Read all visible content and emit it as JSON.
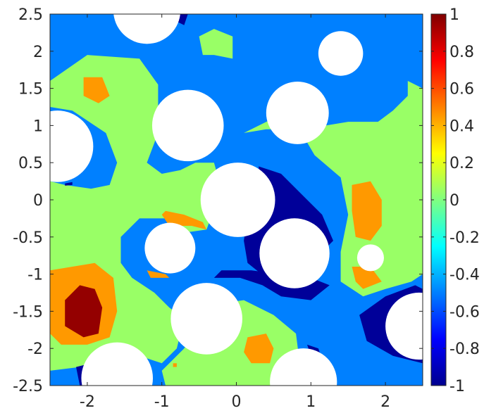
{
  "chart_data": {
    "type": "heatmap",
    "title": "",
    "xlabel": "",
    "ylabel": "",
    "xlim": [
      -2.5,
      2.5
    ],
    "ylim": [
      -2.5,
      2.5
    ],
    "x_ticks": [
      "-2",
      "-1",
      "0",
      "1",
      "2"
    ],
    "y_ticks": [
      "2.5",
      "2",
      "1.5",
      "1",
      "0.5",
      "0",
      "-0.5",
      "-1",
      "-1.5",
      "-2",
      "-2.5"
    ],
    "colorbar": {
      "range": [
        -1,
        1
      ],
      "colormap": "jet",
      "ticks": [
        "1",
        "0.8",
        "0.6",
        "0.4",
        "0.2",
        "0",
        "-0.2",
        "-0.4",
        "-0.6",
        "-0.8",
        "-1"
      ]
    },
    "background_value": -0.5,
    "regions": [
      {
        "value": 0.05,
        "points": [
          [
            -2.5,
            1.6
          ],
          [
            -2.0,
            1.95
          ],
          [
            -1.3,
            1.9
          ],
          [
            -1.05,
            1.55
          ],
          [
            -1.05,
            0.9
          ],
          [
            -1.2,
            0.5
          ],
          [
            -1.0,
            0.35
          ],
          [
            -0.75,
            0.4
          ],
          [
            -0.55,
            0.5
          ],
          [
            -0.3,
            0.5
          ],
          [
            -0.2,
            0.15
          ],
          [
            -0.4,
            -0.4
          ],
          [
            -0.75,
            -0.45
          ],
          [
            -0.95,
            -0.25
          ],
          [
            -1.3,
            -0.25
          ],
          [
            -1.55,
            -0.5
          ],
          [
            -1.55,
            -0.85
          ],
          [
            -1.4,
            -1.05
          ],
          [
            -1.1,
            -1.25
          ],
          [
            -0.9,
            -1.45
          ],
          [
            -0.7,
            -1.6
          ],
          [
            -0.8,
            -2.0
          ],
          [
            -1.0,
            -2.2
          ],
          [
            -1.3,
            -2.1
          ],
          [
            -1.7,
            -2.3
          ],
          [
            -2.1,
            -2.25
          ],
          [
            -2.5,
            -2.3
          ]
        ]
      },
      {
        "value": 0.05,
        "points": [
          [
            -0.25,
            -1.4
          ],
          [
            0.1,
            -1.35
          ],
          [
            0.5,
            -1.55
          ],
          [
            0.8,
            -1.8
          ],
          [
            0.85,
            -2.2
          ],
          [
            0.65,
            -2.5
          ],
          [
            -0.95,
            -2.5
          ],
          [
            -1.0,
            -2.3
          ],
          [
            -0.7,
            -2.0
          ],
          [
            -0.5,
            -1.7
          ]
        ]
      },
      {
        "value": 0.05,
        "points": [
          [
            0.1,
            0.9
          ],
          [
            0.7,
            1.2
          ],
          [
            1.05,
            0.6
          ],
          [
            1.4,
            0.3
          ],
          [
            1.5,
            -0.2
          ],
          [
            1.4,
            -0.7
          ],
          [
            1.4,
            -1.1
          ],
          [
            1.7,
            -1.3
          ],
          [
            2.0,
            -1.2
          ],
          [
            2.35,
            -1.1
          ],
          [
            2.5,
            -1.0
          ],
          [
            2.5,
            1.5
          ],
          [
            2.3,
            1.6
          ],
          [
            2.3,
            1.4
          ],
          [
            2.1,
            1.2
          ],
          [
            1.9,
            1.05
          ],
          [
            1.5,
            1.05
          ],
          [
            1.2,
            1.0
          ],
          [
            0.9,
            0.95
          ],
          [
            0.4,
            0.95
          ]
        ]
      },
      {
        "value": 0.05,
        "points": [
          [
            -0.5,
            2.2
          ],
          [
            -0.3,
            2.3
          ],
          [
            -0.05,
            2.2
          ],
          [
            -0.05,
            1.9
          ],
          [
            -0.3,
            1.95
          ],
          [
            -0.45,
            1.95
          ]
        ]
      },
      {
        "value": -0.5,
        "points": [
          [
            -2.5,
            1.25
          ],
          [
            -2.2,
            1.2
          ],
          [
            -1.75,
            0.9
          ],
          [
            -1.6,
            0.5
          ],
          [
            -1.7,
            0.2
          ],
          [
            -1.95,
            0.15
          ],
          [
            -2.3,
            0.2
          ],
          [
            -2.5,
            0.25
          ]
        ]
      },
      {
        "value": -0.95,
        "points": [
          [
            0.3,
            0.45
          ],
          [
            0.6,
            0.35
          ],
          [
            0.95,
            0.0
          ],
          [
            1.15,
            -0.2
          ],
          [
            1.3,
            -0.55
          ],
          [
            1.05,
            -0.8
          ],
          [
            0.7,
            -1.0
          ],
          [
            0.4,
            -1.05
          ],
          [
            0.15,
            -0.85
          ],
          [
            0.1,
            -0.55
          ],
          [
            0.15,
            -0.2
          ],
          [
            0.3,
            0.1
          ]
        ]
      },
      {
        "value": -0.95,
        "points": [
          [
            -0.3,
            -1.05
          ],
          [
            0.05,
            -1.05
          ],
          [
            0.35,
            -1.15
          ],
          [
            0.6,
            -1.3
          ],
          [
            1.0,
            -1.35
          ],
          [
            1.25,
            -1.15
          ],
          [
            1.0,
            -1.05
          ],
          [
            0.6,
            -1.0
          ],
          [
            0.2,
            -0.95
          ],
          [
            -0.2,
            -0.95
          ]
        ]
      },
      {
        "value": -0.95,
        "points": [
          [
            1.65,
            -1.55
          ],
          [
            2.0,
            -1.3
          ],
          [
            2.4,
            -1.15
          ],
          [
            2.5,
            -1.2
          ],
          [
            2.5,
            -2.2
          ],
          [
            2.1,
            -2.1
          ],
          [
            1.75,
            -1.9
          ]
        ]
      },
      {
        "value": -0.95,
        "points": [
          [
            0.95,
            -1.95
          ],
          [
            1.1,
            -2.0
          ],
          [
            1.15,
            -2.15
          ],
          [
            1.0,
            -2.1
          ]
        ]
      },
      {
        "value": -0.95,
        "points": [
          [
            -2.15,
            -2.25
          ],
          [
            -1.95,
            -2.2
          ],
          [
            -1.85,
            -2.45
          ],
          [
            -2.1,
            -2.5
          ]
        ]
      },
      {
        "value": -0.95,
        "points": [
          [
            -0.8,
            2.5
          ],
          [
            -0.65,
            2.5
          ],
          [
            -0.7,
            2.35
          ],
          [
            -0.8,
            2.4
          ]
        ]
      },
      {
        "value": -0.95,
        "points": [
          [
            -2.3,
            0.22
          ],
          [
            -2.2,
            0.24
          ],
          [
            -2.2,
            0.2
          ],
          [
            -2.3,
            0.19
          ]
        ]
      },
      {
        "value": 0.45,
        "points": [
          [
            -2.5,
            -0.95
          ],
          [
            -2.2,
            -0.9
          ],
          [
            -1.9,
            -0.85
          ],
          [
            -1.65,
            -1.05
          ],
          [
            -1.6,
            -1.5
          ],
          [
            -1.7,
            -1.85
          ],
          [
            -2.0,
            -1.95
          ],
          [
            -2.35,
            -1.95
          ],
          [
            -2.5,
            -1.8
          ]
        ]
      },
      {
        "value": 0.96,
        "points": [
          [
            -2.3,
            -1.35
          ],
          [
            -2.1,
            -1.15
          ],
          [
            -1.9,
            -1.2
          ],
          [
            -1.8,
            -1.45
          ],
          [
            -1.85,
            -1.8
          ],
          [
            -2.05,
            -1.85
          ],
          [
            -2.3,
            -1.7
          ]
        ]
      },
      {
        "value": 0.45,
        "points": [
          [
            -2.05,
            1.65
          ],
          [
            -1.8,
            1.65
          ],
          [
            -1.7,
            1.4
          ],
          [
            -1.85,
            1.3
          ],
          [
            -2.05,
            1.4
          ]
        ]
      },
      {
        "value": 0.45,
        "points": [
          [
            -0.95,
            -0.15
          ],
          [
            -0.7,
            -0.2
          ],
          [
            -0.45,
            -0.3
          ],
          [
            -0.4,
            -0.4
          ],
          [
            -0.6,
            -0.35
          ],
          [
            -0.9,
            -0.35
          ],
          [
            -1.0,
            -0.2
          ]
        ]
      },
      {
        "value": 0.45,
        "points": [
          [
            -1.2,
            -0.95
          ],
          [
            -0.95,
            -1.0
          ],
          [
            -0.9,
            -1.05
          ],
          [
            -1.15,
            -1.05
          ]
        ]
      },
      {
        "value": 0.45,
        "points": [
          [
            1.55,
            0.2
          ],
          [
            1.8,
            0.25
          ],
          [
            1.95,
            0.0
          ],
          [
            1.95,
            -0.35
          ],
          [
            1.8,
            -0.55
          ],
          [
            1.6,
            -0.5
          ],
          [
            1.55,
            -0.15
          ]
        ]
      },
      {
        "value": 0.45,
        "points": [
          [
            1.55,
            -0.9
          ],
          [
            1.8,
            -0.9
          ],
          [
            1.95,
            -1.1
          ],
          [
            1.7,
            -1.2
          ],
          [
            1.6,
            -1.1
          ]
        ]
      },
      {
        "value": 0.45,
        "points": [
          [
            0.15,
            -1.85
          ],
          [
            0.4,
            -1.8
          ],
          [
            0.5,
            -2.0
          ],
          [
            0.45,
            -2.2
          ],
          [
            0.2,
            -2.2
          ],
          [
            0.1,
            -2.05
          ]
        ]
      },
      {
        "value": 0.45,
        "points": [
          [
            -0.85,
            -2.2
          ],
          [
            -0.8,
            -2.2
          ],
          [
            -0.8,
            -2.25
          ],
          [
            -0.85,
            -2.25
          ]
        ]
      }
    ],
    "holes": [
      {
        "cx": -1.2,
        "cy": 2.55,
        "r": 0.45
      },
      {
        "cx": 1.4,
        "cy": 1.97,
        "r": 0.3
      },
      {
        "cx": -0.65,
        "cy": 1.0,
        "r": 0.48
      },
      {
        "cx": 0.82,
        "cy": 1.17,
        "r": 0.42
      },
      {
        "cx": -2.4,
        "cy": 0.72,
        "r": 0.48
      },
      {
        "cx": 0.02,
        "cy": 0.0,
        "r": 0.5
      },
      {
        "cx": -0.89,
        "cy": -0.65,
        "r": 0.34
      },
      {
        "cx": 0.78,
        "cy": -0.72,
        "r": 0.47
      },
      {
        "cx": 1.8,
        "cy": -0.78,
        "r": 0.18
      },
      {
        "cx": -0.4,
        "cy": -1.6,
        "r": 0.48
      },
      {
        "cx": 2.45,
        "cy": -1.7,
        "r": 0.45
      },
      {
        "cx": -1.6,
        "cy": -2.4,
        "r": 0.48
      },
      {
        "cx": 0.9,
        "cy": -2.45,
        "r": 0.45
      }
    ]
  }
}
